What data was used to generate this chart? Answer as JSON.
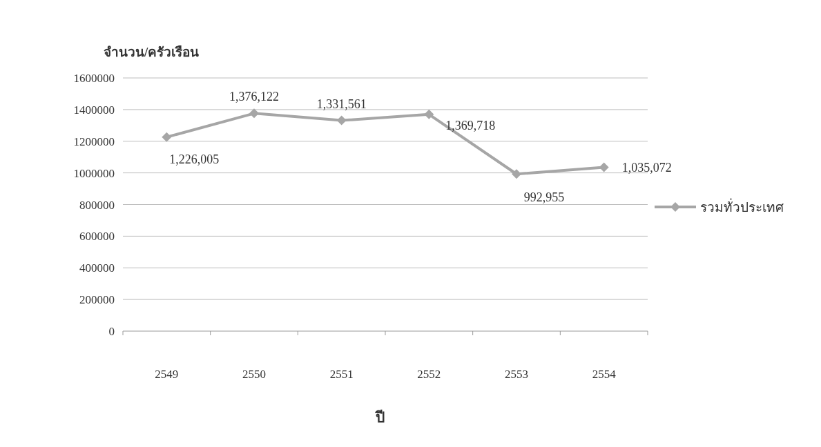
{
  "chart_data": {
    "type": "line",
    "ylabel": "จำนวน/ครัวเรือน",
    "xlabel": "ปี",
    "categories": [
      "2549",
      "2550",
      "2551",
      "2552",
      "2553",
      "2554"
    ],
    "series": [
      {
        "name": "รวมทั่วประเทศ",
        "color": "#a6a6a6",
        "values": [
          1226005,
          1376122,
          1331561,
          1369718,
          992955,
          1035072
        ],
        "value_labels": [
          "1,226,005",
          "1,376,122",
          "1,331,561",
          "1,369,718",
          "992,955",
          "1,035,072"
        ]
      }
    ],
    "ylim": [
      0,
      1600000
    ],
    "yticks": [
      0,
      200000,
      400000,
      600000,
      800000,
      1000000,
      1200000,
      1400000,
      1600000
    ],
    "grid": "y",
    "legend": "right",
    "marker": "diamond",
    "line_style": "solid"
  }
}
